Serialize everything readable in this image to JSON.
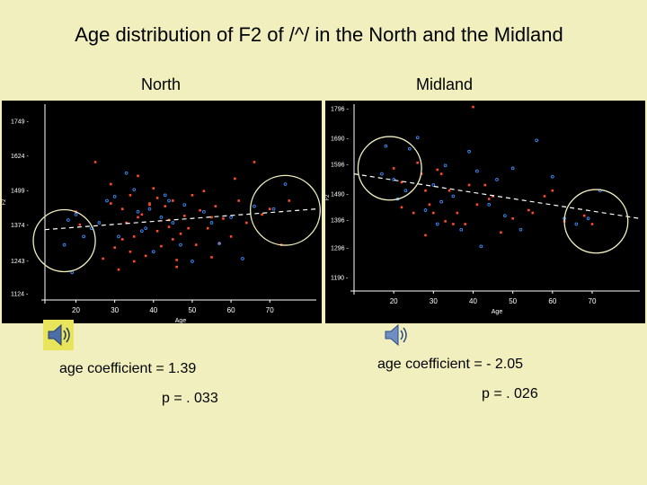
{
  "title": "Age distribution of F2 of /^/ in the North and the Midland",
  "colors": {
    "background": "#f2efbf",
    "plot_bg": "#000000",
    "axis": "#ffffff",
    "female": "#ff4b2b",
    "male": "#3d8fff",
    "circle": "#f2efbf",
    "trend": "#ffffff"
  },
  "panels": [
    {
      "region": "North",
      "coefficient_text": "age  coefficient = 1.39",
      "p_text": "p = . 033",
      "icon": "speaker-icon"
    },
    {
      "region": "Midland",
      "coefficient_text": "age  coefficient = - 2.05",
      "p_text": "p =  . 026",
      "icon": "speaker-icon"
    }
  ],
  "chart_data": [
    {
      "type": "scatter",
      "title": "North",
      "xlabel": "Age",
      "ylabel": "F2",
      "xlim": [
        12,
        82
      ],
      "ylim": [
        1100,
        1810
      ],
      "x_ticks": [
        20,
        30,
        40,
        50,
        60,
        70
      ],
      "x_tick_labels": [
        "20",
        "30",
        "40",
        "50",
        "60",
        "70"
      ],
      "y_ticks": [
        1124,
        1243,
        1374,
        1499,
        1624,
        1749
      ],
      "y_tick_labels": [
        "1124 -",
        "1243 -",
        "1374 -",
        "1499 -",
        "1624 -",
        "1749 -"
      ],
      "trend": {
        "x": [
          12,
          82
        ],
        "y": [
          1355,
          1430
        ]
      },
      "highlight_circles": [
        {
          "cx": 17,
          "cy": 1315,
          "r": 8
        },
        {
          "cx": 74,
          "cy": 1425,
          "r": 9
        }
      ],
      "series": [
        {
          "name": "female",
          "x": [
            21,
            25,
            27,
            29,
            30,
            31,
            32,
            33,
            34,
            35,
            36,
            37,
            38,
            40,
            41,
            42,
            43,
            44,
            45,
            46,
            47,
            48,
            50,
            51,
            52,
            54,
            55,
            56,
            58,
            60,
            62,
            64,
            66,
            68,
            32,
            36,
            41,
            46,
            49,
            53,
            57,
            61,
            29,
            34,
            39,
            44,
            70,
            73,
            75,
            20,
            35,
            45,
            55,
            39
          ],
          "y": [
            1373,
            1600,
            1250,
            1450,
            1290,
            1210,
            1430,
            1380,
            1480,
            1330,
            1550,
            1410,
            1260,
            1505,
            1350,
            1295,
            1440,
            1390,
            1460,
            1220,
            1340,
            1405,
            1480,
            1300,
            1425,
            1360,
            1255,
            1440,
            1395,
            1330,
            1460,
            1380,
            1600,
            1410,
            1320,
            1400,
            1470,
            1245,
            1360,
            1495,
            1305,
            1540,
            1520,
            1275,
            1445,
            1365,
            1430,
            1300,
            1460,
            1420,
            1240,
            1320,
            1400,
            1450
          ]
        },
        {
          "name": "male",
          "x": [
            17,
            18,
            20,
            22,
            24,
            28,
            30,
            31,
            33,
            35,
            36,
            38,
            39,
            40,
            42,
            43,
            45,
            47,
            48,
            50,
            53,
            55,
            57,
            60,
            63,
            66,
            71,
            74,
            37,
            26,
            19,
            44
          ],
          "y": [
            1300,
            1390,
            1410,
            1330,
            1360,
            1460,
            1475,
            1330,
            1560,
            1500,
            1420,
            1360,
            1430,
            1275,
            1400,
            1480,
            1380,
            1300,
            1445,
            1240,
            1420,
            1380,
            1305,
            1400,
            1250,
            1440,
            1430,
            1520,
            1350,
            1380,
            1200,
            1460
          ]
        }
      ]
    },
    {
      "type": "scatter",
      "title": "Midland",
      "xlabel": "Age",
      "ylabel": "F2",
      "xlim": [
        10,
        82
      ],
      "ylim": [
        1140,
        1810
      ],
      "x_ticks": [
        20,
        30,
        40,
        50,
        60,
        70
      ],
      "x_tick_labels": [
        "20",
        "30",
        "40",
        "50",
        "60",
        "70"
      ],
      "y_ticks": [
        1190,
        1296,
        1396,
        1490,
        1596,
        1690,
        1796
      ],
      "y_tick_labels": [
        "1190 -",
        "1296 -",
        "1396 -",
        "1490 -",
        "1596 -",
        "1690 -",
        "1796 -"
      ],
      "trend": {
        "x": [
          10,
          82
        ],
        "y": [
          1560,
          1400
        ]
      },
      "highlight_circles": [
        {
          "cx": 19,
          "cy": 1580,
          "r": 8
        },
        {
          "cx": 71,
          "cy": 1390,
          "r": 8
        }
      ],
      "series": [
        {
          "name": "female",
          "x": [
            20,
            22,
            25,
            27,
            28,
            29,
            30,
            31,
            32,
            33,
            34,
            36,
            38,
            40,
            41,
            43,
            45,
            47,
            50,
            54,
            58,
            60,
            63,
            68,
            70,
            22,
            26,
            35,
            44,
            55,
            28,
            39
          ],
          "y": [
            1580,
            1530,
            1420,
            1560,
            1500,
            1450,
            1420,
            1575,
            1560,
            1390,
            1500,
            1420,
            1380,
            1800,
            1450,
            1520,
            1480,
            1350,
            1400,
            1430,
            1480,
            1500,
            1390,
            1410,
            1380,
            1440,
            1600,
            1380,
            1470,
            1420,
            1340,
            1520
          ]
        },
        {
          "name": "male",
          "x": [
            17,
            18,
            20,
            21,
            24,
            26,
            28,
            30,
            31,
            33,
            35,
            37,
            39,
            41,
            42,
            44,
            46,
            50,
            52,
            56,
            60,
            63,
            66,
            69,
            72,
            23,
            32,
            48
          ],
          "y": [
            1560,
            1660,
            1540,
            1470,
            1650,
            1690,
            1430,
            1520,
            1380,
            1590,
            1480,
            1360,
            1640,
            1570,
            1300,
            1450,
            1540,
            1580,
            1360,
            1680,
            1550,
            1400,
            1380,
            1400,
            1500,
            1500,
            1460,
            1410
          ]
        }
      ]
    }
  ]
}
